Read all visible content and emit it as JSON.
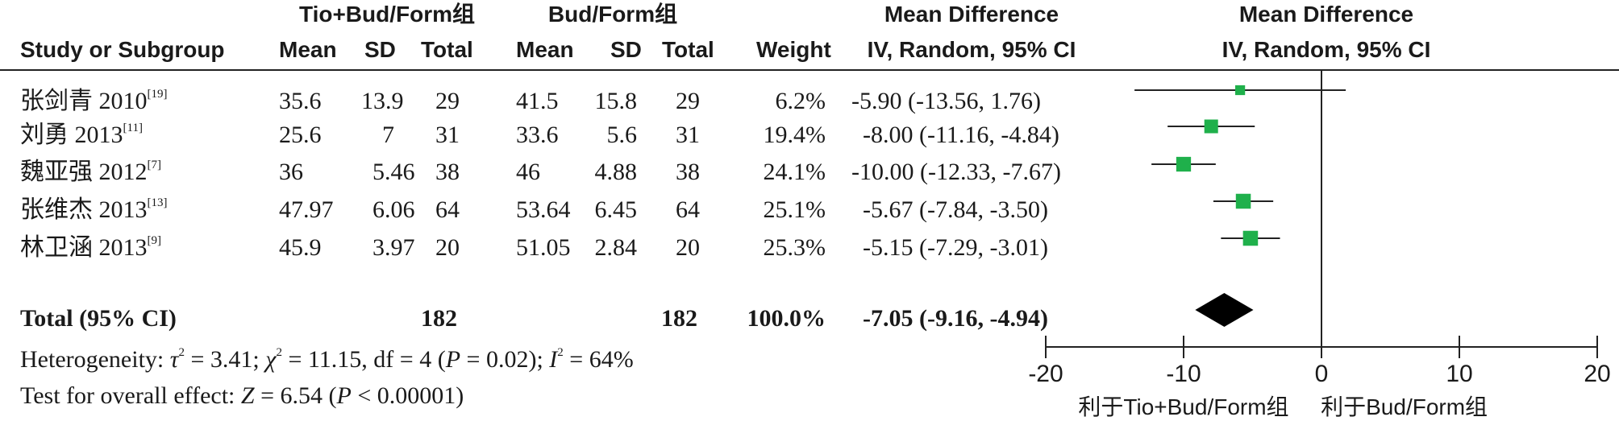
{
  "header": {
    "group1_title": "Tio+Bud/Form组",
    "group2_title": "Bud/Form组",
    "md_title": "Mean Difference",
    "md_method": "IV, Random, 95% CI",
    "plot_title": "Mean Difference",
    "plot_method": "IV, Random, 95% CI",
    "study_label": "Study or Subgroup",
    "mean": "Mean",
    "sd": "SD",
    "total": "Total",
    "weight": "Weight"
  },
  "studies": [
    {
      "name": "张剑青 2010",
      "ref": "[19]",
      "m1": "35.6",
      "sd1": "13.9",
      "n1": "29",
      "m2": "41.5",
      "sd2": "15.8",
      "n2": "29",
      "weight": "6.2%",
      "ci": "-5.90 (-13.56, 1.76)"
    },
    {
      "name": "刘勇 2013",
      "ref": "[11]",
      "m1": "25.6",
      "sd1": "7",
      "n1": "31",
      "m2": "33.6",
      "sd2": "5.6",
      "n2": "31",
      "weight": "19.4%",
      "ci": "-8.00 (-11.16, -4.84)"
    },
    {
      "name": "魏亚强 2012",
      "ref": "[7]",
      "m1": "36",
      "sd1": "5.46",
      "n1": "38",
      "m2": "46",
      "sd2": "4.88",
      "n2": "38",
      "weight": "24.1%",
      "ci": "-10.00 (-12.33, -7.67)"
    },
    {
      "name": "张维杰 2013",
      "ref": "[13]",
      "m1": "47.97",
      "sd1": "6.06",
      "n1": "64",
      "m2": "53.64",
      "sd2": "6.45",
      "n2": "64",
      "weight": "25.1%",
      "ci": "-5.67 (-7.84, -3.50)"
    },
    {
      "name": "林卫涵 2013",
      "ref": "[9]",
      "m1": "45.9",
      "sd1": "3.97",
      "n1": "20",
      "m2": "51.05",
      "sd2": "2.84",
      "n2": "20",
      "weight": "25.3%",
      "ci": "-5.15 (-7.29, -3.01)"
    }
  ],
  "total": {
    "label": "Total (95% CI)",
    "n1": "182",
    "n2": "182",
    "weight": "100.0%",
    "ci": "-7.05 (-9.16, -4.94)"
  },
  "footer": {
    "het_prefix": "Heterogeneity: ",
    "het_tau": "τ",
    "het_tau_sup": "2",
    "het_tau_val": " = 3.41; ",
    "het_chi": "χ",
    "het_chi_sup": "2",
    "het_chi_val": " = 11.15, df = 4 (",
    "het_p": "P",
    "het_p_val": " = 0.02); ",
    "het_i": "I",
    "het_i_sup": "2",
    "het_i_val": " = 64%",
    "test_prefix": "Test for overall effect: ",
    "test_z": "Z",
    "test_z_val": " = 6.54 (",
    "test_p": "P",
    "test_p_val": " < 0.00001)"
  },
  "chart_data": {
    "type": "forest",
    "xlim": [
      -20,
      20
    ],
    "ticks": [
      "-20",
      "-10",
      "0",
      "10",
      "20"
    ],
    "tick_values": [
      -20,
      -10,
      0,
      10,
      20
    ],
    "favours_left": "利于Tio+Bud/Form组",
    "favours_right": "利于Bud/Form组",
    "marker_color": "#1fb04b",
    "diamond_color": "#000000",
    "studies": [
      {
        "name": "张剑青 2010",
        "md": -5.9,
        "lo": -13.56,
        "hi": 1.76,
        "weight": 6.2
      },
      {
        "name": "刘勇 2013",
        "md": -8.0,
        "lo": -11.16,
        "hi": -4.84,
        "weight": 19.4
      },
      {
        "name": "魏亚强 2012",
        "md": -10.0,
        "lo": -12.33,
        "hi": -7.67,
        "weight": 24.1
      },
      {
        "name": "张维杰 2013",
        "md": -5.67,
        "lo": -7.84,
        "hi": -3.5,
        "weight": 25.1
      },
      {
        "name": "林卫涵 2013",
        "md": -5.15,
        "lo": -7.29,
        "hi": -3.01,
        "weight": 25.3
      }
    ],
    "total": {
      "md": -7.05,
      "lo": -9.16,
      "hi": -4.94
    }
  }
}
